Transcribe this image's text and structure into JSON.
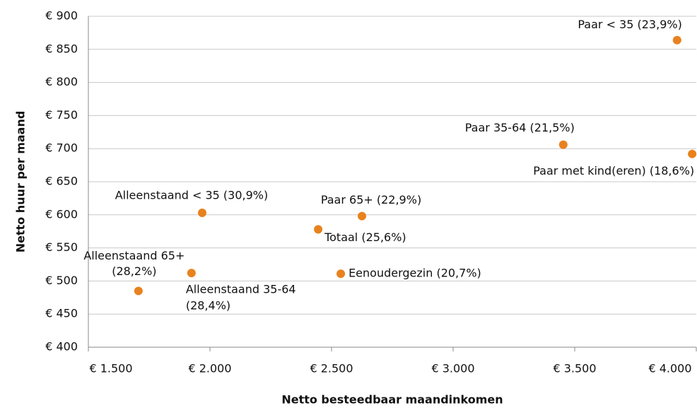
{
  "chart_data": {
    "type": "scatter",
    "xlabel": "Netto besteedbaar maandinkomen",
    "ylabel": "Netto huur per maand",
    "color": "#e8821e",
    "grid": true,
    "xlim": [
      1500,
      4000
    ],
    "ylim": [
      400,
      900
    ],
    "xticks": [
      {
        "value": 1500,
        "label": "€ 1.500"
      },
      {
        "value": 2000,
        "label": "€ 2.000"
      },
      {
        "value": 2500,
        "label": "€ 2.500"
      },
      {
        "value": 3000,
        "label": "€ 3.000"
      },
      {
        "value": 3500,
        "label": "€ 3.500"
      },
      {
        "value": 4000,
        "label": "€ 4.000"
      }
    ],
    "yticks": [
      {
        "value": 400,
        "label": "€ 400"
      },
      {
        "value": 450,
        "label": "€ 450"
      },
      {
        "value": 500,
        "label": "€ 500"
      },
      {
        "value": 550,
        "label": "€ 550"
      },
      {
        "value": 600,
        "label": "€ 600"
      },
      {
        "value": 650,
        "label": "€ 650"
      },
      {
        "value": 700,
        "label": "€ 700"
      },
      {
        "value": 750,
        "label": "€ 750"
      },
      {
        "value": 800,
        "label": "€ 800"
      },
      {
        "value": 850,
        "label": "€ 850"
      },
      {
        "value": 900,
        "label": "€ 900"
      }
    ],
    "labels": [
      [
        "Paar < 35 (23,9%)"
      ],
      [
        "Paar 35-64 (21,5%)"
      ],
      [
        "Paar met kind(eren) (18,6%)"
      ],
      [
        "Alleenstaand < 35 (30,9%)"
      ],
      [
        "Paar 65+ (22,9%)"
      ],
      [
        "Totaal (25,6%)"
      ],
      [
        "Alleenstaand 65+",
        "(28,2%)"
      ],
      [
        "Eenoudergezin (20,7%)"
      ],
      [
        "Alleenstaand 35-64",
        "(28,4%)"
      ]
    ],
    "x": [
      3921,
      3453,
      3983,
      1968,
      2625,
      2445,
      1706,
      2538,
      1924
    ],
    "values": [
      864,
      706,
      692,
      603,
      598,
      578,
      485,
      511,
      512
    ]
  }
}
